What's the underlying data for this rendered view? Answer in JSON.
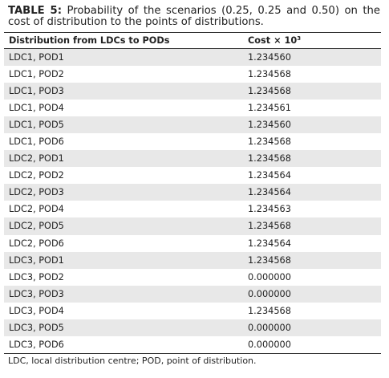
{
  "caption": {
    "label": "TABLE 5:",
    "text": " Probability of the scenarios (0.25, 0.25 and 0.50) on the cost of distribution to the points of distributions."
  },
  "table": {
    "headers": {
      "col1": "Distribution from LDCs to PODs",
      "col2": "Cost × 10",
      "col2_sup": "3"
    },
    "rows": [
      {
        "route": "LDC1, POD1",
        "cost": "1.234560"
      },
      {
        "route": "LDC1, POD2",
        "cost": "1.234568"
      },
      {
        "route": "LDC1, POD3",
        "cost": "1.234568"
      },
      {
        "route": "LDC1, POD4",
        "cost": "1.234561"
      },
      {
        "route": "LDC1, POD5",
        "cost": "1.234560"
      },
      {
        "route": "LDC1, POD6",
        "cost": "1.234568"
      },
      {
        "route": "LDC2, POD1",
        "cost": "1.234568"
      },
      {
        "route": "LDC2, POD2",
        "cost": "1.234564"
      },
      {
        "route": "LDC2, POD3",
        "cost": "1.234564"
      },
      {
        "route": "LDC2, POD4",
        "cost": "1.234563"
      },
      {
        "route": "LDC2, POD5",
        "cost": "1.234568"
      },
      {
        "route": "LDC2, POD6",
        "cost": "1.234564"
      },
      {
        "route": "LDC3, POD1",
        "cost": "1.234568"
      },
      {
        "route": "LDC3, POD2",
        "cost": "0.000000"
      },
      {
        "route": "LDC3, POD3",
        "cost": "0.000000"
      },
      {
        "route": "LDC3, POD4",
        "cost": "1.234568"
      },
      {
        "route": "LDC3, POD5",
        "cost": "0.000000"
      },
      {
        "route": "LDC3, POD6",
        "cost": "0.000000"
      }
    ]
  },
  "footnote": "LDC, local distribution centre; POD, point of distribution."
}
